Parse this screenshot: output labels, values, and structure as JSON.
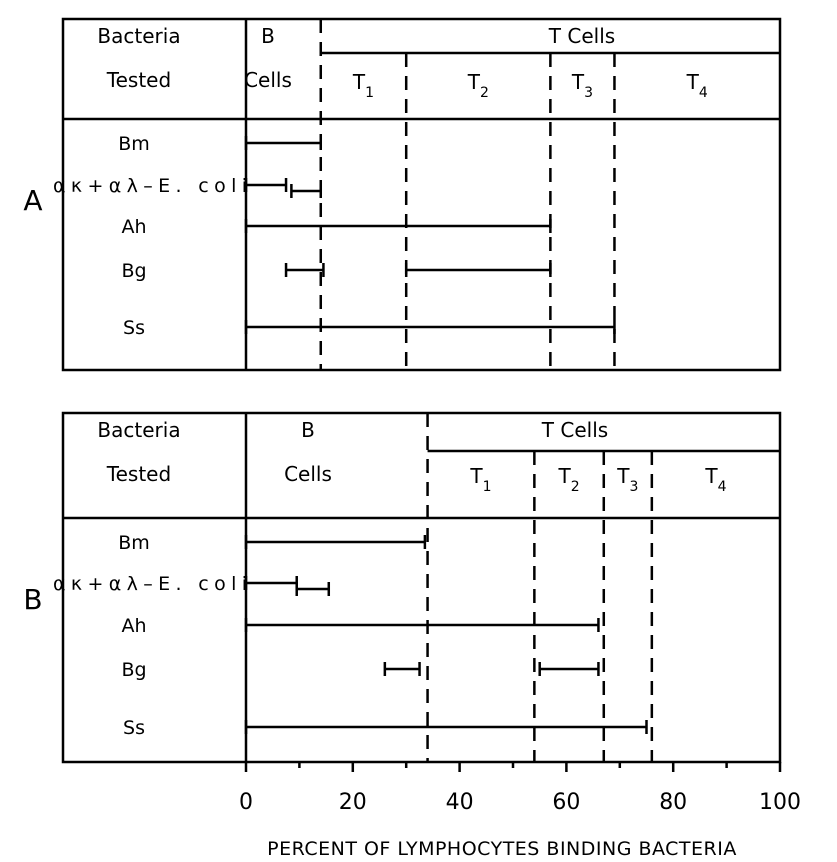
{
  "chart_data": {
    "type": "range-bar",
    "xlabel": "PERCENT OF LYMPHOCYTES BINDING BACTERIA",
    "xlim": [
      0,
      100
    ],
    "xticks": [
      "0",
      "20",
      "40",
      "60",
      "80",
      "100"
    ],
    "header": {
      "bacteria_line1": "Bacteria",
      "bacteria_line2": "Tested",
      "b_cells_line1": "B",
      "b_cells_line2": "Cells",
      "t_cells": "T  Cells"
    },
    "panels": [
      {
        "label": "A",
        "t_cells_start": 14,
        "boundaries": [
          14,
          30,
          57,
          69
        ],
        "subsets": [
          {
            "label": "T",
            "sub": "1",
            "center": 22
          },
          {
            "label": "T",
            "sub": "2",
            "center": 43.5
          },
          {
            "label": "T",
            "sub": "3",
            "center": 63
          },
          {
            "label": "T",
            "sub": "4",
            "center": 84.5
          }
        ],
        "rows": [
          {
            "name": "Bm",
            "ranges": [
              [
                0,
                14
              ]
            ]
          },
          {
            "name": "ακ+αλ–E. coli",
            "ranges": [
              [
                0,
                7.5
              ],
              [
                8.5,
                14
              ]
            ]
          },
          {
            "name": "Ah",
            "ranges": [
              [
                0,
                57
              ]
            ]
          },
          {
            "name": "Bg",
            "ranges": [
              [
                7.5,
                14.5
              ],
              [
                30,
                57
              ]
            ]
          },
          {
            "name": "Ss",
            "ranges": [
              [
                0,
                69
              ]
            ]
          }
        ]
      },
      {
        "label": "B",
        "t_cells_start": 34,
        "boundaries": [
          34,
          54,
          67,
          76
        ],
        "subsets": [
          {
            "label": "T",
            "sub": "1",
            "center": 44
          },
          {
            "label": "T",
            "sub": "2",
            "center": 60.5
          },
          {
            "label": "T",
            "sub": "3",
            "center": 71.5
          },
          {
            "label": "T",
            "sub": "4",
            "center": 88
          }
        ],
        "rows": [
          {
            "name": "Bm",
            "ranges": [
              [
                0,
                33.5
              ]
            ]
          },
          {
            "name": "ακ+αλ–E. coli",
            "ranges": [
              [
                0,
                9.5
              ],
              [
                9.5,
                15.5
              ]
            ]
          },
          {
            "name": "Ah",
            "ranges": [
              [
                0,
                66
              ]
            ]
          },
          {
            "name": "Bg",
            "ranges": [
              [
                26,
                32.5
              ],
              [
                55,
                66
              ]
            ]
          },
          {
            "name": "Ss",
            "ranges": [
              [
                0,
                75
              ]
            ]
          }
        ]
      }
    ]
  }
}
